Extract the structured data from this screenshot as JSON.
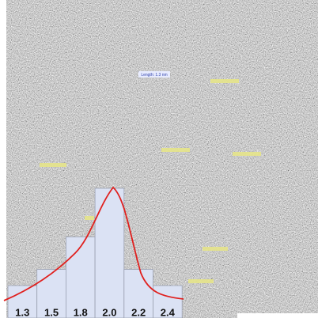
{
  "annotation": "Length: 1.3 nm",
  "chart_data": {
    "type": "bar",
    "categories": [
      "1.3",
      "1.5",
      "1.8",
      "2.0",
      "2.2",
      "2.4"
    ],
    "values": [
      2,
      3,
      5,
      8,
      3,
      2
    ],
    "color": "#dbe2f4"
  }
}
